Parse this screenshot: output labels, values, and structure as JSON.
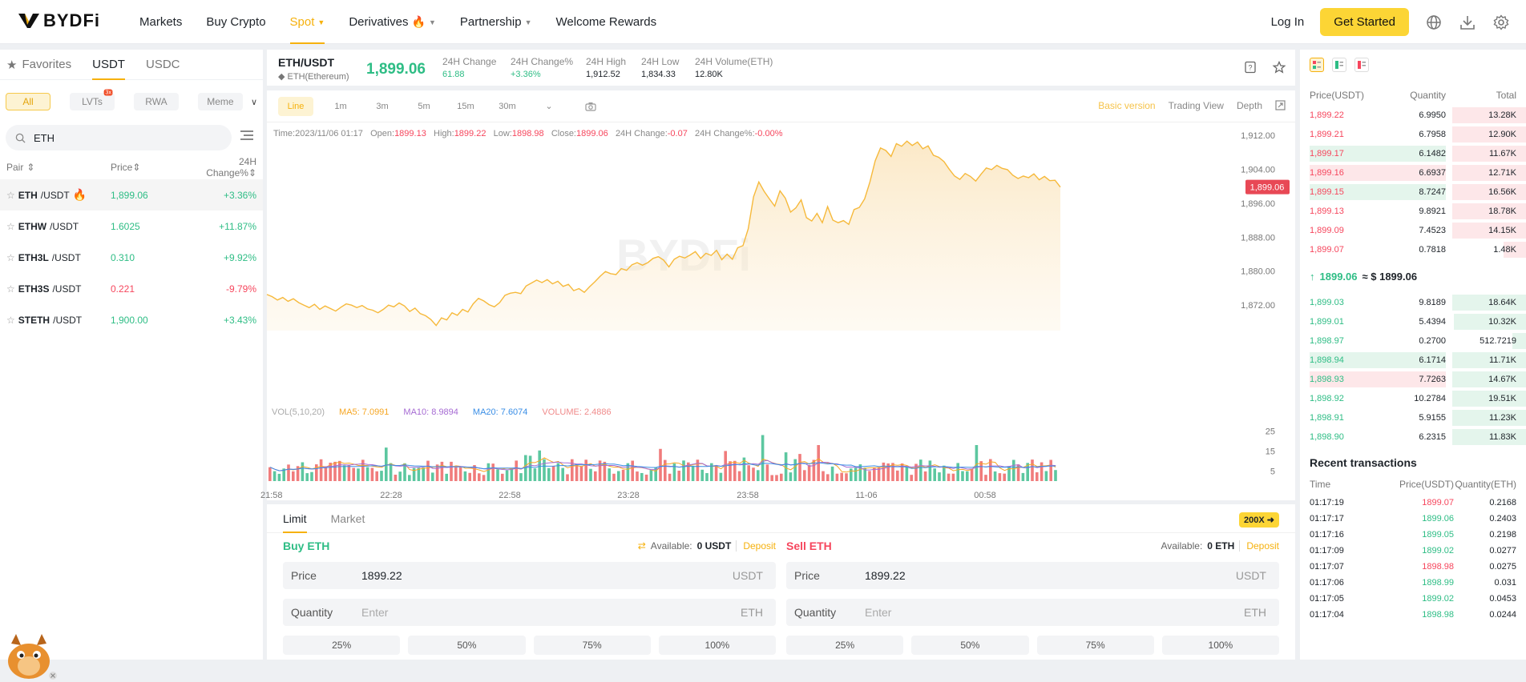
{
  "header": {
    "logo": "BYDFi",
    "nav": [
      {
        "label": "Markets"
      },
      {
        "label": "Buy Crypto"
      },
      {
        "label": "Spot",
        "active": true,
        "dropdown": true
      },
      {
        "label": "Derivatives",
        "dropdown": true,
        "hot": true
      },
      {
        "label": "Partnership",
        "dropdown": true
      },
      {
        "label": "Welcome Rewards"
      }
    ],
    "login": "Log In",
    "get_started": "Get Started",
    "icons": [
      "globe-icon",
      "download-icon",
      "settings-icon"
    ]
  },
  "left": {
    "tabs": [
      "Favorites",
      "USDT",
      "USDC"
    ],
    "active_tab": "USDT",
    "chips": [
      "All",
      "LVTs",
      "RWA",
      "Meme"
    ],
    "lvts_badge": "3x",
    "search_value": "ETH",
    "columns": [
      "Pair",
      "Price",
      "24H Change%"
    ],
    "pairs": [
      {
        "base": "ETH",
        "quote": "/USDT",
        "price": "1,899.06",
        "change": "+3.36%",
        "dir": "up",
        "hot": true
      },
      {
        "base": "ETHW",
        "quote": "/USDT",
        "price": "1.6025",
        "change": "+11.87%",
        "dir": "up"
      },
      {
        "base": "ETH3L",
        "quote": "/USDT",
        "price": "0.310",
        "change": "+9.92%",
        "dir": "up"
      },
      {
        "base": "ETH3S",
        "quote": "/USDT",
        "price": "0.221",
        "change": "-9.79%",
        "dir": "down"
      },
      {
        "base": "STETH",
        "quote": "/USDT",
        "price": "1,900.00",
        "change": "+3.43%",
        "dir": "up"
      }
    ]
  },
  "ticker": {
    "pair": "ETH/USDT",
    "name": "ETH(Ethereum)",
    "price": "1,899.06",
    "stats": [
      {
        "label": "24H Change",
        "value": "61.88",
        "color": "green"
      },
      {
        "label": "24H Change%",
        "value": "+3.36%",
        "color": "green"
      },
      {
        "label": "24H High",
        "value": "1,912.52"
      },
      {
        "label": "24H Low",
        "value": "1,834.33"
      },
      {
        "label": "24H Volume(ETH)",
        "value": "12.80K"
      }
    ]
  },
  "chart_toolbar": {
    "intervals": [
      "Line",
      "1m",
      "3m",
      "5m",
      "15m",
      "30m"
    ],
    "active_interval": "Line",
    "views": [
      "Basic version",
      "Trading View",
      "Depth"
    ],
    "active_view": "Basic version"
  },
  "ohlc": {
    "time_label": "Time:",
    "time": "2023/11/06 01:17",
    "open_label": "Open:",
    "open": "1899.13",
    "high_label": "High:",
    "high": "1899.22",
    "low_label": "Low:",
    "low": "1898.98",
    "close_label": "Close:",
    "close": "1899.06",
    "chg_label": "24H Change:",
    "chg": "-0.07",
    "chgp_label": "24H Change%:",
    "chgp": "-0.00%"
  },
  "vol_legend": {
    "vol": "VOL(5,10,20)",
    "ma5": "MA5: 7.0991",
    "ma10": "MA10: 8.9894",
    "ma20": "MA20: 7.6074",
    "volume": "VOLUME: 2.4886"
  },
  "chart_data": {
    "type": "line",
    "title": "",
    "y_ticks": [
      "1,912.00",
      "1,904.00",
      "1,896.00",
      "1,888.00",
      "1,880.00",
      "1,872.00"
    ],
    "ylim": [
      1866,
      1915
    ],
    "x_ticks": [
      "21:58",
      "22:28",
      "22:58",
      "23:28",
      "23:58",
      "11-06",
      "00:58"
    ],
    "last_price_label": "1,899.06",
    "series": [
      {
        "values": [
          1874.5,
          1874.0,
          1873.2,
          1873.8,
          1872.9,
          1873.5,
          1872.6,
          1872.0,
          1871.4,
          1872.2,
          1871.0,
          1871.8,
          1871.2,
          1870.6,
          1871.5,
          1872.3,
          1872.0,
          1871.4,
          1871.9,
          1871.1,
          1870.8,
          1870.2,
          1871.0,
          1872.0,
          1871.6,
          1872.5,
          1871.8,
          1870.5,
          1871.3,
          1870.0,
          1869.5,
          1868.6,
          1867.2,
          1869.0,
          1868.5,
          1870.2,
          1869.6,
          1871.0,
          1870.4,
          1872.3,
          1873.6,
          1873.0,
          1872.1,
          1871.6,
          1872.6,
          1874.3,
          1874.8,
          1875.0,
          1874.7,
          1876.5,
          1877.2,
          1877.9,
          1877.3,
          1878.0,
          1877.0,
          1877.6,
          1876.4,
          1876.9,
          1875.4,
          1875.9,
          1875.0,
          1876.3,
          1877.5,
          1878.8,
          1879.9,
          1879.4,
          1879.2,
          1880.6,
          1880.2,
          1881.5,
          1882.0,
          1881.4,
          1882.0,
          1883.0,
          1883.4,
          1882.6,
          1881.0,
          1882.8,
          1883.5,
          1883.1,
          1883.8,
          1884.6,
          1883.0,
          1884.2,
          1883.7,
          1884.9,
          1882.7,
          1884.0,
          1882.8,
          1885.5,
          1886.0,
          1890.0,
          1897.5,
          1901.0,
          1898.8,
          1897.0,
          1895.3,
          1898.9,
          1897.2,
          1893.9,
          1894.9,
          1896.8,
          1892.6,
          1891.8,
          1893.6,
          1891.4,
          1895.2,
          1892.0,
          1891.4,
          1891.9,
          1891.0,
          1894.5,
          1895.0,
          1897.0,
          1901.0,
          1906.0,
          1909.0,
          1908.4,
          1907.0,
          1910.0,
          1909.4,
          1910.6,
          1909.6,
          1910.4,
          1908.8,
          1909.5,
          1907.3,
          1906.8,
          1905.8,
          1904.0,
          1902.4,
          1901.6,
          1903.0,
          1902.3,
          1901.2,
          1902.8,
          1904.3,
          1903.9,
          1904.9,
          1904.2,
          1903.9,
          1902.6,
          1901.8,
          1902.4,
          1902.0,
          1902.9,
          1901.5,
          1902.3,
          1901.3,
          1901.4,
          1899.8
        ]
      }
    ]
  },
  "volume_ticks": [
    "25",
    "15",
    "5"
  ],
  "order": {
    "tabs": [
      "Limit",
      "Market"
    ],
    "active_tab": "Limit",
    "leverage": "200X",
    "buy": {
      "title": "Buy ETH",
      "available_label": "Available:",
      "available": "0 USDT",
      "deposit": "Deposit",
      "price_label": "Price",
      "price": "1899.22",
      "price_unit": "USDT",
      "qty_label": "Quantity",
      "qty_placeholder": "Enter",
      "qty_unit": "ETH"
    },
    "sell": {
      "title": "Sell ETH",
      "available_label": "Available:",
      "available": "0 ETH",
      "deposit": "Deposit",
      "price_label": "Price",
      "price": "1899.22",
      "price_unit": "USDT",
      "qty_label": "Quantity",
      "qty_placeholder": "Enter",
      "qty_unit": "ETH"
    },
    "percents": [
      "25%",
      "50%",
      "75%",
      "100%"
    ]
  },
  "orderbook": {
    "columns": [
      "Price(USDT)",
      "Quantity",
      "Total"
    ],
    "asks": [
      {
        "p": "1,899.22",
        "q": "6.9950",
        "t": "13.28K",
        "depth": 0.42
      },
      {
        "p": "1,899.21",
        "q": "6.7958",
        "t": "12.90K",
        "depth": 0.4
      },
      {
        "p": "1,899.17",
        "q": "6.1482",
        "t": "11.67K",
        "depth": 0.36,
        "flash": "green"
      },
      {
        "p": "1,899.16",
        "q": "6.6937",
        "t": "12.71K",
        "depth": 0.4,
        "flash": "red"
      },
      {
        "p": "1,899.15",
        "q": "8.7247",
        "t": "16.56K",
        "depth": 0.52,
        "flash": "green"
      },
      {
        "p": "1,899.13",
        "q": "9.8921",
        "t": "18.78K",
        "depth": 0.58
      },
      {
        "p": "1,899.09",
        "q": "7.4523",
        "t": "14.15K",
        "depth": 0.44
      },
      {
        "p": "1,899.07",
        "q": "0.7818",
        "t": "1.48K",
        "depth": 0.1
      }
    ],
    "mid_price": "1899.06",
    "mid_usd": "≈ $ 1899.06",
    "bids": [
      {
        "p": "1,899.03",
        "q": "9.8189",
        "t": "18.64K",
        "depth": 0.58
      },
      {
        "p": "1,899.01",
        "q": "5.4394",
        "t": "10.32K",
        "depth": 0.32
      },
      {
        "p": "1,898.97",
        "q": "0.2700",
        "t": "512.7219",
        "depth": 0.06
      },
      {
        "p": "1,898.94",
        "q": "6.1714",
        "t": "11.71K",
        "depth": 0.36,
        "flash": "green"
      },
      {
        "p": "1,898.93",
        "q": "7.7263",
        "t": "14.67K",
        "depth": 0.46,
        "flash": "red"
      },
      {
        "p": "1,898.92",
        "q": "10.2784",
        "t": "19.51K",
        "depth": 0.6
      },
      {
        "p": "1,898.91",
        "q": "5.9155",
        "t": "11.23K",
        "depth": 0.34
      },
      {
        "p": "1,898.90",
        "q": "6.2315",
        "t": "11.83K",
        "depth": 0.36
      }
    ]
  },
  "recent": {
    "title": "Recent transactions",
    "columns": [
      "Time",
      "Price(USDT)",
      "Quantity(ETH)"
    ],
    "rows": [
      {
        "t": "01:17:19",
        "p": "1899.07",
        "q": "0.2168",
        "dir": "down"
      },
      {
        "t": "01:17:17",
        "p": "1899.06",
        "q": "0.2403",
        "dir": "up"
      },
      {
        "t": "01:17:16",
        "p": "1899.05",
        "q": "0.2198",
        "dir": "up"
      },
      {
        "t": "01:17:09",
        "p": "1899.02",
        "q": "0.0277",
        "dir": "up"
      },
      {
        "t": "01:17:07",
        "p": "1898.98",
        "q": "0.0275",
        "dir": "down"
      },
      {
        "t": "01:17:06",
        "p": "1898.99",
        "q": "0.031",
        "dir": "up"
      },
      {
        "t": "01:17:05",
        "p": "1899.02",
        "q": "0.0453",
        "dir": "up"
      },
      {
        "t": "01:17:04",
        "p": "1898.98",
        "q": "0.0244",
        "dir": "up"
      }
    ]
  },
  "colors": {
    "brand": "#fcd535",
    "up": "#2ebd85",
    "down": "#f6465d",
    "line": "#f6b93b"
  }
}
